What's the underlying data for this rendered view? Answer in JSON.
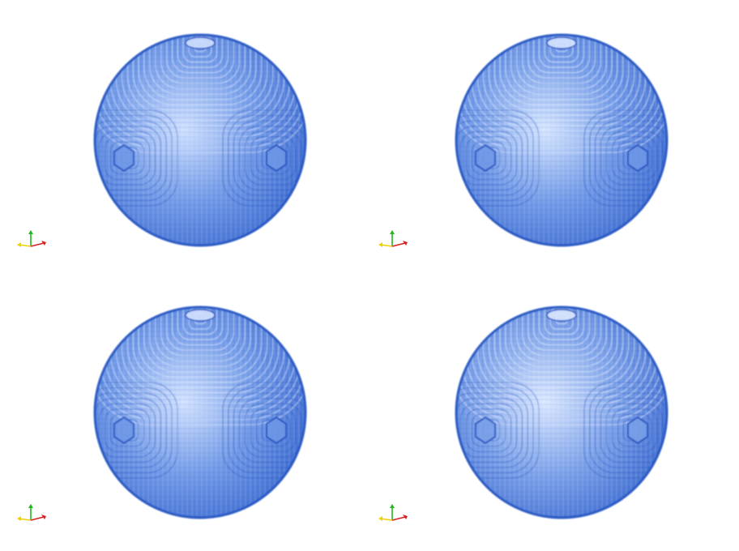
{
  "figure": {
    "panels": [
      {
        "id": "a",
        "view": "voxel-sphere",
        "fill_color": "#6f98e6",
        "edge_color": "#1f4fbf",
        "highlight_color": "#cfe0ff",
        "rings": "side-hexagon"
      },
      {
        "id": "b",
        "view": "voxel-sphere",
        "fill_color": "#6f98e6",
        "edge_color": "#1f4fbf",
        "highlight_color": "#d6e6ff",
        "rings": "side-hexagon"
      },
      {
        "id": "c",
        "view": "voxel-sphere",
        "fill_color": "#6f98e6",
        "edge_color": "#1f4fbf",
        "highlight_color": "#d2e2ff",
        "rings": "side-hexagon"
      },
      {
        "id": "d",
        "view": "voxel-sphere",
        "fill_color": "#7aa0e8",
        "edge_color": "#1f4fbf",
        "highlight_color": "#dbe8ff",
        "rings": "side-hexagon"
      }
    ],
    "axes_triad": {
      "x_color": "#d62020",
      "y_color": "#f0d000",
      "z_color": "#1fb81f"
    }
  }
}
